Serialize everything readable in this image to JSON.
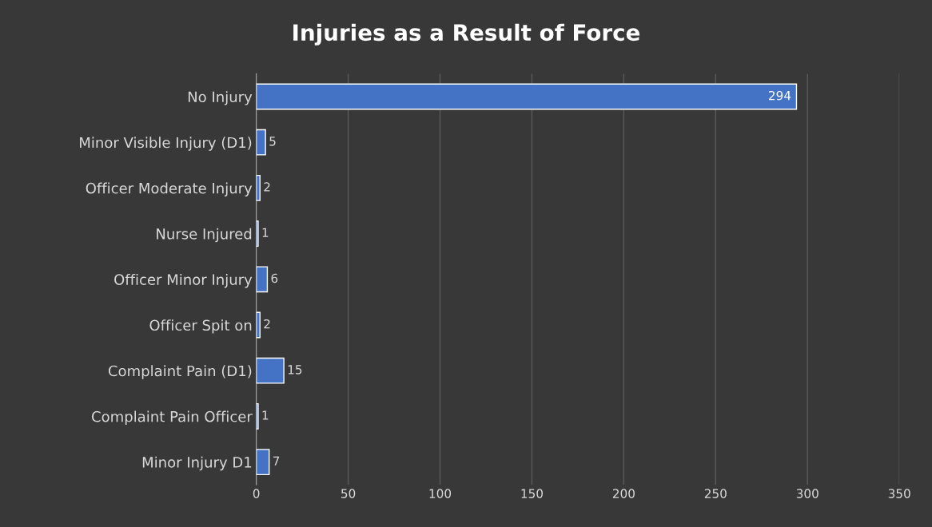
{
  "chart_data": {
    "type": "bar",
    "orientation": "horizontal",
    "title": "Injuries as a Result of Force",
    "categories": [
      "No Injury",
      "Minor Visible Injury (D1)",
      "Officer Moderate Injury",
      "Nurse Injured",
      "Officer Minor Injury",
      "Officer Spit on",
      "Complaint Pain (D1)",
      "Complaint Pain Officer",
      "Minor Injury D1"
    ],
    "values": [
      294,
      5,
      2,
      1,
      6,
      2,
      15,
      1,
      7
    ],
    "color": "#4472c4",
    "xlim": [
      0,
      350
    ],
    "xticks": [
      0,
      50,
      100,
      150,
      200,
      250,
      300,
      350
    ],
    "grid": "x",
    "data_labels": true
  }
}
